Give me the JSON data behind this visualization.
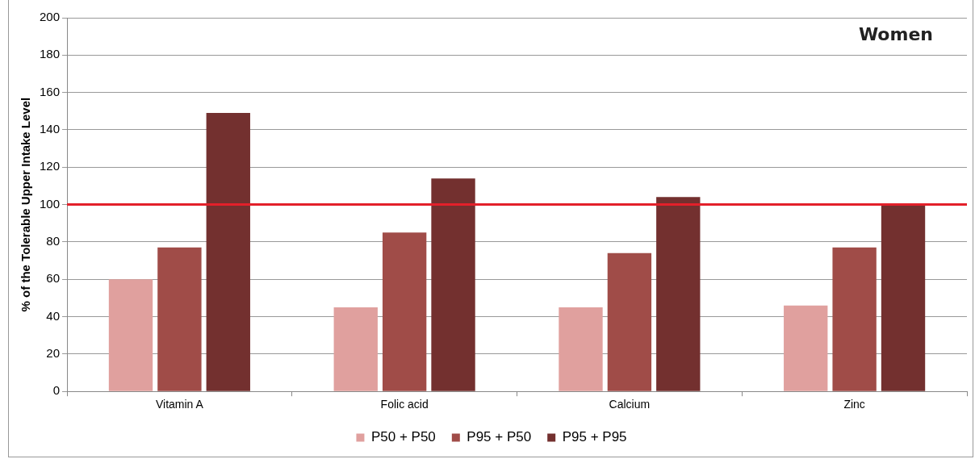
{
  "chart_data": {
    "type": "bar",
    "ylabel": "% of the Tolerable Upper Intake Level",
    "categories": [
      "Vitamin A",
      "Folic acid",
      "Calcium",
      "Zinc"
    ],
    "series": [
      {
        "name": "P50 + P50",
        "color": "#e0a09e",
        "values": [
          60,
          45,
          45,
          46
        ]
      },
      {
        "name": "P95 + P50",
        "color": "#a04c48",
        "values": [
          77,
          85,
          74,
          77
        ]
      },
      {
        "name": "P95 + P95",
        "color": "#73302f",
        "values": [
          149,
          114,
          104,
          100
        ]
      }
    ],
    "ylim": [
      0,
      200
    ],
    "yticks": [
      0,
      20,
      40,
      60,
      80,
      100,
      120,
      140,
      160,
      180,
      200
    ],
    "grid": "y",
    "legend": "bottom",
    "ref_lines": [
      {
        "axis": "y",
        "value": 100,
        "color": "#e3202a"
      }
    ],
    "annotations": [
      "Women"
    ]
  }
}
